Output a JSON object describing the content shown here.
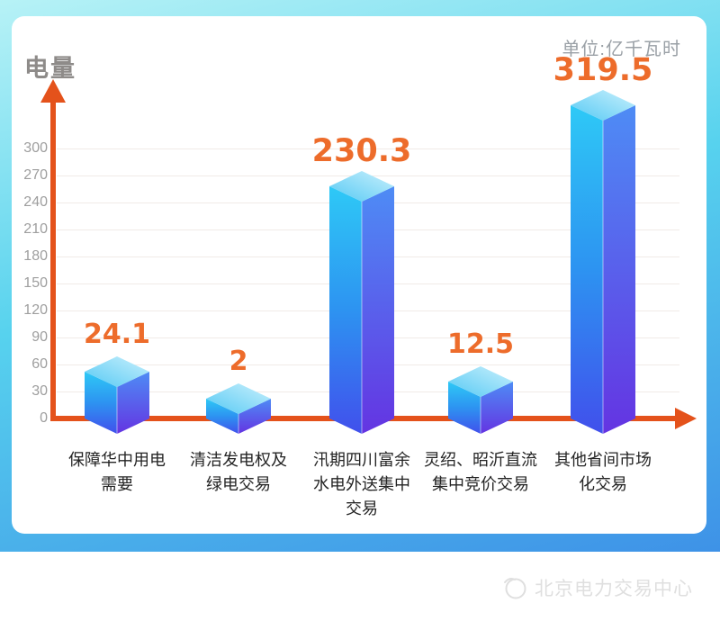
{
  "header": {
    "axis_title": "电量",
    "unit_label": "单位:亿千瓦时"
  },
  "chart_data": {
    "type": "bar",
    "style": "3d-cube-bars",
    "title": "",
    "ylabel": "电量",
    "unit": "亿千瓦时",
    "categories": [
      "保障华中用电需要",
      "清洁发电权及绿电交易",
      "汛期四川富余水电外送集中交易",
      "灵绍、昭沂直流集中竞价交易",
      "其他省间市场化交易"
    ],
    "category_lines": [
      [
        "保障华中用电",
        "需要"
      ],
      [
        "清洁发电权及",
        "绿电交易"
      ],
      [
        "汛期四川富余",
        "水电外送集中",
        "交易"
      ],
      [
        "灵绍、昭沂直流",
        "集中竞价交易"
      ],
      [
        "其他省间市场",
        "化交易"
      ]
    ],
    "values": [
      24.1,
      2,
      230.3,
      12.5,
      319.5
    ],
    "value_labels": [
      "24.1",
      "2",
      "230.3",
      "12.5",
      "319.5"
    ],
    "yticks": [
      0,
      30,
      60,
      90,
      120,
      150,
      180,
      210,
      240,
      270,
      300
    ],
    "ylim": [
      0,
      330
    ],
    "grid": true,
    "legend": false
  },
  "footer": {
    "brand_text": "北京电力交易中心"
  },
  "colors": {
    "axis": "#e4521b",
    "value_label": "#ed6c2b",
    "axis_title": "#8e8b89",
    "unit_label": "#9aa0a6",
    "tick_label": "#9e9e9e",
    "category_label": "#242424",
    "gridline": "#f0ebe7",
    "watermark": "#dfdfdf",
    "background_top": "#b7f2f6",
    "background_mid": "#57d2ee",
    "background_bottom": "#3e92e7",
    "bar_left_face": [
      "#2ec9f6",
      "#2d93f1",
      "#4150ec"
    ],
    "bar_right_face": [
      "#4e8cf5",
      "#6434e2"
    ],
    "bar_top_face": [
      "#55c9f4",
      "#c9f0fc"
    ]
  }
}
